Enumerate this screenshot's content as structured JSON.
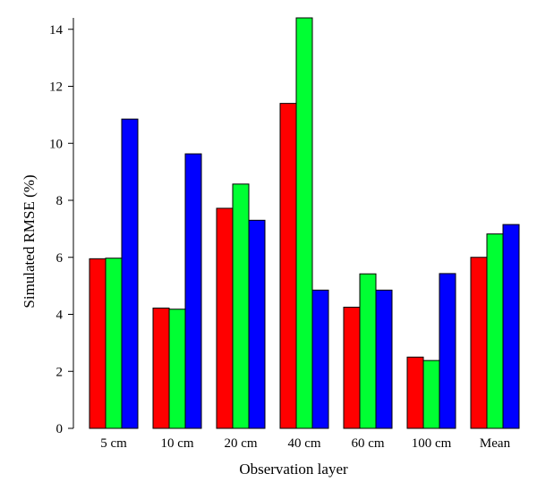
{
  "chart_data": {
    "type": "bar",
    "title": "",
    "xlabel": "Observation layer",
    "ylabel": "Simulated RMSE (%)",
    "ylim": [
      0,
      14.4
    ],
    "yticks": [
      0,
      2,
      4,
      6,
      8,
      10,
      12,
      14
    ],
    "grid": false,
    "legend": "none",
    "categories": [
      "5 cm",
      "10 cm",
      "20 cm",
      "40 cm",
      "60 cm",
      "100 cm",
      "Mean"
    ],
    "series": [
      {
        "color": "#ff0000",
        "values": [
          5.95,
          4.22,
          7.72,
          11.4,
          4.25,
          2.5,
          6.0
        ]
      },
      {
        "color": "#00ff33",
        "values": [
          5.97,
          4.18,
          8.57,
          14.4,
          5.42,
          2.38,
          6.82
        ]
      },
      {
        "color": "#0000ff",
        "values": [
          10.85,
          9.63,
          7.3,
          4.85,
          4.85,
          5.43,
          7.15
        ]
      }
    ]
  }
}
